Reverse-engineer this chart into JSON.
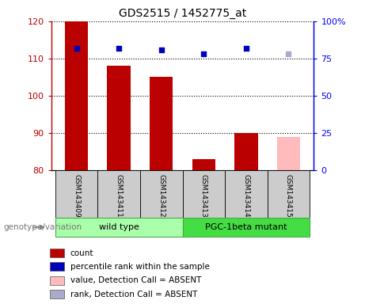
{
  "title": "GDS2515 / 1452775_at",
  "samples": [
    "GSM143409",
    "GSM143411",
    "GSM143412",
    "GSM143413",
    "GSM143414",
    "GSM143415"
  ],
  "count_values": [
    120,
    108,
    105,
    83,
    90,
    89
  ],
  "count_absent": [
    false,
    false,
    false,
    false,
    false,
    true
  ],
  "percentile_values": [
    82,
    82,
    81,
    78,
    82,
    78
  ],
  "percentile_absent": [
    false,
    false,
    false,
    false,
    false,
    true
  ],
  "ylim_left": [
    80,
    120
  ],
  "ylim_right": [
    0,
    100
  ],
  "yticks_left": [
    80,
    90,
    100,
    110,
    120
  ],
  "ytick_labels_left": [
    "80",
    "90",
    "100",
    "110",
    "120"
  ],
  "yticks_right": [
    0,
    25,
    50,
    75,
    100
  ],
  "ytick_labels_right": [
    "0",
    "25",
    "50",
    "75",
    "100%"
  ],
  "bar_color_present": "#bb0000",
  "bar_color_absent": "#ffbbbb",
  "dot_color_present": "#0000bb",
  "dot_color_absent": "#aaaacc",
  "bar_width": 0.55,
  "bg_color_xlabel": "#cccccc",
  "legend_items": [
    {
      "color": "#bb0000",
      "label": "count"
    },
    {
      "color": "#0000bb",
      "label": "percentile rank within the sample"
    },
    {
      "color": "#ffbbbb",
      "label": "value, Detection Call = ABSENT"
    },
    {
      "color": "#aaaacc",
      "label": "rank, Detection Call = ABSENT"
    }
  ],
  "genotype_label": "genotype/variation",
  "group_labels": [
    "wild type",
    "PGC-1beta mutant"
  ],
  "group_color_wt": "#aaffaa",
  "group_color_mut": "#44dd44",
  "group_border_color": "#44aa44"
}
